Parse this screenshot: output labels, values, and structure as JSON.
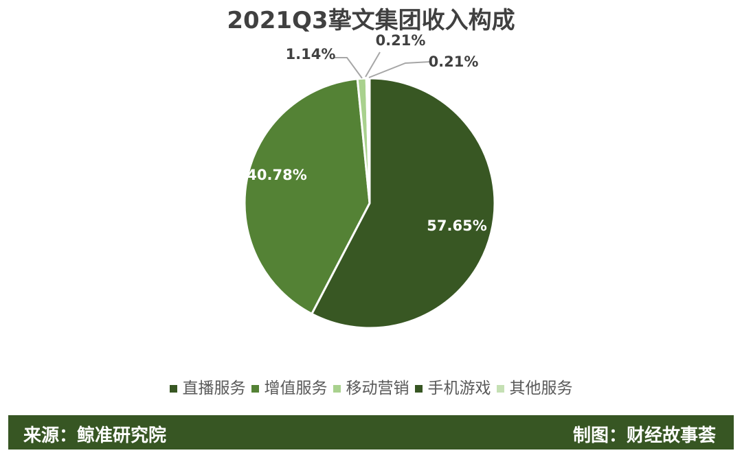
{
  "chart_data": {
    "type": "pie",
    "title": "2021Q3挚文集团收入构成",
    "categories": [
      "直播服务",
      "增值服务",
      "移动营销",
      "手机游戏",
      "其他服务"
    ],
    "values": [
      57.65,
      40.78,
      1.14,
      0.21,
      0.21
    ],
    "labels": [
      "57.65%",
      "40.78%",
      "1.14%",
      "0.21%",
      "0.21%"
    ],
    "colors": [
      "#385723",
      "#548235",
      "#a9d18e",
      "#375623",
      "#c5e0b4"
    ],
    "legend_position": "bottom",
    "start_angle": "12 o'clock, clockwise"
  },
  "footer": {
    "source": "来源：鲸准研究院",
    "credit": "制图：财经故事荟"
  }
}
